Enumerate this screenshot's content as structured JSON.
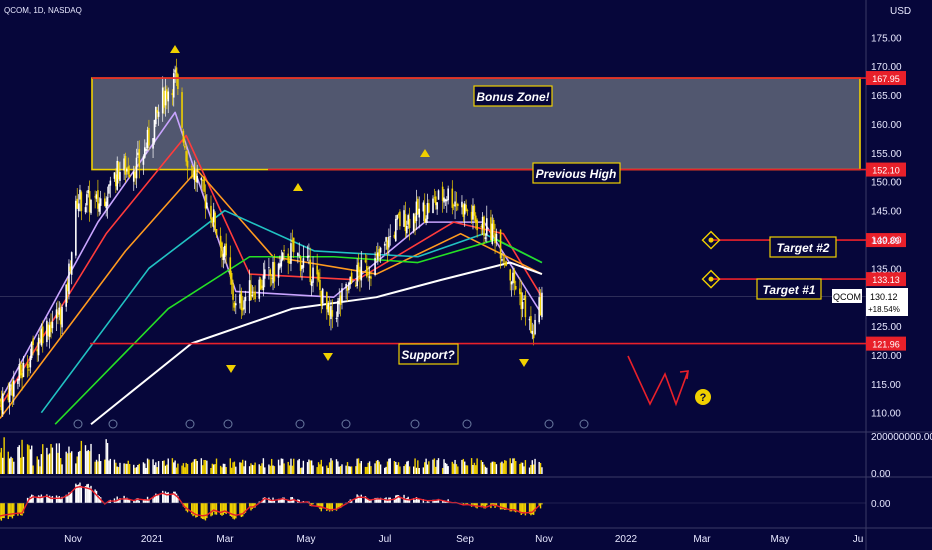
{
  "header": {
    "symbol": "QCOM, 1D, NASDAQ",
    "currency": "USD"
  },
  "price_ticks": [
    "175.00",
    "170.00",
    "165.00",
    "160.00",
    "155.00",
    "150.00",
    "145.00",
    "140.00",
    "135.00",
    "130.00",
    "125.00",
    "120.00",
    "115.00",
    "110.00"
  ],
  "volume_ticks": [
    "200000000.00",
    "0.00"
  ],
  "osc_ticks": [
    "0.00"
  ],
  "time_axis": [
    "Nov",
    "2021",
    "Mar",
    "May",
    "Jul",
    "Sep",
    "Nov",
    "2022",
    "Mar",
    "May",
    "Ju"
  ],
  "quote": {
    "symbol": "QCOM",
    "price": "130.12",
    "change": "+18.54%"
  },
  "levels": [
    {
      "name": "zone-top",
      "value": "167.95",
      "color": "#e8202a"
    },
    {
      "name": "zone-bottom",
      "value": "152.10",
      "color": "#e8202a"
    },
    {
      "name": "target-2",
      "value": "139.89",
      "color": "#e8202a"
    },
    {
      "name": "target-1",
      "value": "133.13",
      "color": "#e8202a"
    },
    {
      "name": "support",
      "value": "121.96",
      "color": "#e8202a"
    }
  ],
  "annotations": {
    "bonus_zone": "Bonus Zone!",
    "previous_high": "Previous High",
    "target_2": "Target #2",
    "target_1": "Target #1",
    "support": "Support?",
    "question": "?"
  },
  "colors": {
    "background": "#06063a",
    "up": "#ffffff",
    "down": "#f0d000",
    "zone_fill": "#6b7382",
    "zone_border": "#f0d000",
    "level": "#e8202a",
    "ma_fast": "#c9a4ff",
    "ma_2": "#ff3b3b",
    "ma_3": "#ff9a1f",
    "ma_4": "#21c2c2",
    "ma_5": "#25e025",
    "ma_6": "#ffffff",
    "vol_up": "#ffffff",
    "vol_down": "#f0d000",
    "osc_line": "#e8202a"
  },
  "chart_data": {
    "type": "candlestick",
    "ticker": "QCOM",
    "interval": "1D",
    "exchange": "NASDAQ",
    "ylim": [
      107,
      178
    ],
    "x_range": [
      "2020-09-15",
      "2022-06-05"
    ],
    "price_path": [
      {
        "date": "2020-09-15",
        "close": 112
      },
      {
        "date": "2020-10-01",
        "close": 117
      },
      {
        "date": "2020-10-15",
        "close": 124
      },
      {
        "date": "2020-11-01",
        "close": 128
      },
      {
        "date": "2020-11-10",
        "close": 147
      },
      {
        "date": "2020-11-25",
        "close": 146
      },
      {
        "date": "2020-12-10",
        "close": 152
      },
      {
        "date": "2020-12-25",
        "close": 153
      },
      {
        "date": "2021-01-05",
        "close": 160
      },
      {
        "date": "2021-01-12",
        "close": 165
      },
      {
        "date": "2021-01-20",
        "close": 168
      },
      {
        "date": "2021-01-28",
        "close": 155
      },
      {
        "date": "2021-02-05",
        "close": 150
      },
      {
        "date": "2021-02-15",
        "close": 145
      },
      {
        "date": "2021-02-25",
        "close": 137
      },
      {
        "date": "2021-03-05",
        "close": 128
      },
      {
        "date": "2021-03-15",
        "close": 131
      },
      {
        "date": "2021-04-01",
        "close": 134
      },
      {
        "date": "2021-04-15",
        "close": 138
      },
      {
        "date": "2021-05-01",
        "close": 134
      },
      {
        "date": "2021-05-12",
        "close": 126
      },
      {
        "date": "2021-06-01",
        "close": 134
      },
      {
        "date": "2021-06-15",
        "close": 136
      },
      {
        "date": "2021-07-01",
        "close": 143
      },
      {
        "date": "2021-07-20",
        "close": 145
      },
      {
        "date": "2021-08-05",
        "close": 148
      },
      {
        "date": "2021-08-15",
        "close": 146
      },
      {
        "date": "2021-09-01",
        "close": 142
      },
      {
        "date": "2021-09-10",
        "close": 141
      },
      {
        "date": "2021-09-20",
        "close": 134
      },
      {
        "date": "2021-10-01",
        "close": 128
      },
      {
        "date": "2021-10-06",
        "close": 123
      },
      {
        "date": "2021-10-13",
        "close": 130
      }
    ],
    "moving_averages": [
      {
        "name": "MA-fast",
        "values": [
          {
            "date": "2020-09-15",
            "close": 112
          },
          {
            "date": "2020-11-25",
            "close": 143
          },
          {
            "date": "2021-01-20",
            "close": 162
          },
          {
            "date": "2021-03-05",
            "close": 131
          },
          {
            "date": "2021-05-15",
            "close": 130
          },
          {
            "date": "2021-07-20",
            "close": 143
          },
          {
            "date": "2021-09-01",
            "close": 143
          },
          {
            "date": "2021-10-13",
            "close": 127
          }
        ]
      },
      {
        "name": "MA-2",
        "values": [
          {
            "date": "2020-09-15",
            "close": 111
          },
          {
            "date": "2020-12-01",
            "close": 141
          },
          {
            "date": "2021-01-28",
            "close": 158
          },
          {
            "date": "2021-03-15",
            "close": 134
          },
          {
            "date": "2021-06-01",
            "close": 133
          },
          {
            "date": "2021-08-10",
            "close": 143
          },
          {
            "date": "2021-09-15",
            "close": 141
          },
          {
            "date": "2021-10-13",
            "close": 130
          }
        ]
      },
      {
        "name": "MA-3",
        "values": [
          {
            "date": "2020-09-15",
            "close": 109
          },
          {
            "date": "2020-12-15",
            "close": 138
          },
          {
            "date": "2021-02-05",
            "close": 152
          },
          {
            "date": "2021-04-01",
            "close": 137
          },
          {
            "date": "2021-06-15",
            "close": 134
          },
          {
            "date": "2021-08-15",
            "close": 141
          },
          {
            "date": "2021-10-13",
            "close": 134
          }
        ]
      },
      {
        "name": "MA-4",
        "values": [
          {
            "date": "2020-10-15",
            "close": 110
          },
          {
            "date": "2021-01-01",
            "close": 135
          },
          {
            "date": "2021-02-25",
            "close": 145
          },
          {
            "date": "2021-05-01",
            "close": 138
          },
          {
            "date": "2021-07-15",
            "close": 137
          },
          {
            "date": "2021-09-01",
            "close": 141
          },
          {
            "date": "2021-10-13",
            "close": 136
          }
        ]
      },
      {
        "name": "MA-5",
        "values": [
          {
            "date": "2020-10-25",
            "close": 108
          },
          {
            "date": "2021-01-15",
            "close": 128
          },
          {
            "date": "2021-03-15",
            "close": 137
          },
          {
            "date": "2021-05-15",
            "close": 137
          },
          {
            "date": "2021-07-15",
            "close": 136
          },
          {
            "date": "2021-09-10",
            "close": 140
          },
          {
            "date": "2021-10-13",
            "close": 136
          }
        ]
      },
      {
        "name": "MA-6",
        "values": [
          {
            "date": "2020-11-20",
            "close": 108
          },
          {
            "date": "2021-02-01",
            "close": 122
          },
          {
            "date": "2021-04-15",
            "close": 128
          },
          {
            "date": "2021-06-15",
            "close": 130
          },
          {
            "date": "2021-08-01",
            "close": 133
          },
          {
            "date": "2021-09-20",
            "close": 136
          },
          {
            "date": "2021-10-13",
            "close": 134
          }
        ]
      }
    ],
    "last_price": 130.12,
    "change_percent": 18.54,
    "horizontal_levels": [
      167.95,
      152.1,
      139.89,
      133.13,
      121.96
    ],
    "zone": {
      "label": "Bonus Zone!",
      "top": 167.95,
      "bottom": 152.1
    },
    "labels": [
      "Bonus Zone!",
      "Previous High",
      "Target #2",
      "Target #1",
      "Support?"
    ]
  }
}
